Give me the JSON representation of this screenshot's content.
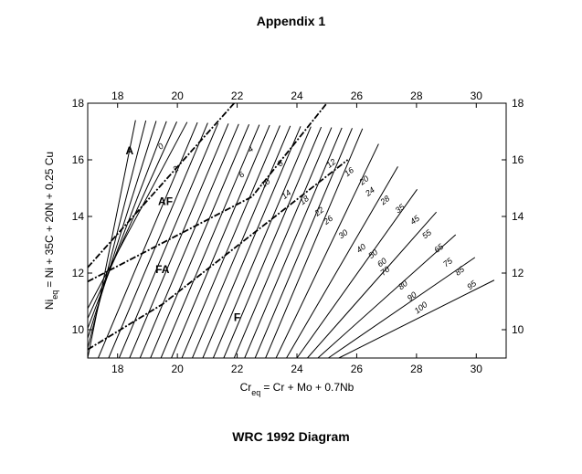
{
  "page": {
    "title": "Appendix 1",
    "caption": "WRC 1992 Diagram"
  },
  "chart_data": {
    "type": "diagram",
    "x_axis": {
      "label_main": "Cr",
      "label_sub": "eq",
      "label_rest": "= Cr + Mo + 0.7Nb",
      "range": [
        17,
        31
      ],
      "ticks": [
        18,
        20,
        22,
        24,
        26,
        28,
        30
      ]
    },
    "y_axis": {
      "label_main": "Ni",
      "label_sub": "eq",
      "label_rest": "= Ni + 35C + 20N + 0.25 Cu",
      "range": [
        9,
        18
      ],
      "ticks": [
        10,
        12,
        14,
        16,
        18
      ]
    },
    "regions": [
      {
        "label": "A",
        "x": 18.4,
        "y": 16.2
      },
      {
        "label": "AF",
        "x": 19.6,
        "y": 14.4
      },
      {
        "label": "FA",
        "x": 19.5,
        "y": 12.0
      },
      {
        "label": "F",
        "x": 22.0,
        "y": 10.3
      }
    ],
    "boundaries": [
      {
        "name": "A/AF",
        "points": [
          [
            17.0,
            12.2
          ],
          [
            21.9,
            18.0
          ]
        ]
      },
      {
        "name": "AF/FA",
        "points": [
          [
            17.0,
            11.7
          ],
          [
            22.5,
            14.7
          ],
          [
            25.0,
            18.0
          ]
        ]
      },
      {
        "name": "FA/F",
        "points": [
          [
            17.0,
            9.3
          ],
          [
            19.5,
            10.9
          ],
          [
            25.7,
            16.0
          ]
        ]
      }
    ],
    "ferrite_numbers": {
      "values": [
        0,
        2,
        4,
        6,
        8,
        10,
        12,
        14,
        16,
        18,
        20,
        22,
        24,
        26,
        28,
        30,
        35,
        40,
        45,
        50,
        55,
        60,
        65,
        70,
        75,
        80,
        85,
        90,
        95,
        100
      ],
      "labels": [
        {
          "text": "0",
          "x": 19.5,
          "y": 16.4
        },
        {
          "text": "2",
          "x": 20.0,
          "y": 15.6
        },
        {
          "text": "4",
          "x": 22.5,
          "y": 16.3
        },
        {
          "text": "6",
          "x": 22.2,
          "y": 15.4
        },
        {
          "text": "8",
          "x": 23.5,
          "y": 15.8
        },
        {
          "text": "10",
          "x": 23.0,
          "y": 15.1
        },
        {
          "text": "12",
          "x": 25.2,
          "y": 15.8
        },
        {
          "text": "14",
          "x": 23.7,
          "y": 14.7
        },
        {
          "text": "16",
          "x": 25.8,
          "y": 15.5
        },
        {
          "text": "18",
          "x": 24.3,
          "y": 14.5
        },
        {
          "text": "20",
          "x": 26.3,
          "y": 15.2
        },
        {
          "text": "22",
          "x": 24.8,
          "y": 14.1
        },
        {
          "text": "24",
          "x": 26.5,
          "y": 14.8
        },
        {
          "text": "26",
          "x": 25.1,
          "y": 13.8
        },
        {
          "text": "28",
          "x": 27.0,
          "y": 14.5
        },
        {
          "text": "30",
          "x": 25.6,
          "y": 13.3
        },
        {
          "text": "35",
          "x": 27.5,
          "y": 14.2
        },
        {
          "text": "40",
          "x": 26.2,
          "y": 12.8
        },
        {
          "text": "45",
          "x": 28.0,
          "y": 13.8
        },
        {
          "text": "50",
          "x": 26.6,
          "y": 12.6
        },
        {
          "text": "55",
          "x": 28.4,
          "y": 13.3
        },
        {
          "text": "60",
          "x": 26.9,
          "y": 12.3
        },
        {
          "text": "65",
          "x": 28.8,
          "y": 12.8
        },
        {
          "text": "70",
          "x": 27.0,
          "y": 12.0
        },
        {
          "text": "75",
          "x": 29.1,
          "y": 12.3
        },
        {
          "text": "80",
          "x": 27.6,
          "y": 11.5
        },
        {
          "text": "85",
          "x": 29.5,
          "y": 12.0
        },
        {
          "text": "90",
          "x": 27.9,
          "y": 11.1
        },
        {
          "text": "95",
          "x": 29.9,
          "y": 11.5
        },
        {
          "text": "100",
          "x": 28.2,
          "y": 10.7
        }
      ]
    },
    "grid": false
  }
}
